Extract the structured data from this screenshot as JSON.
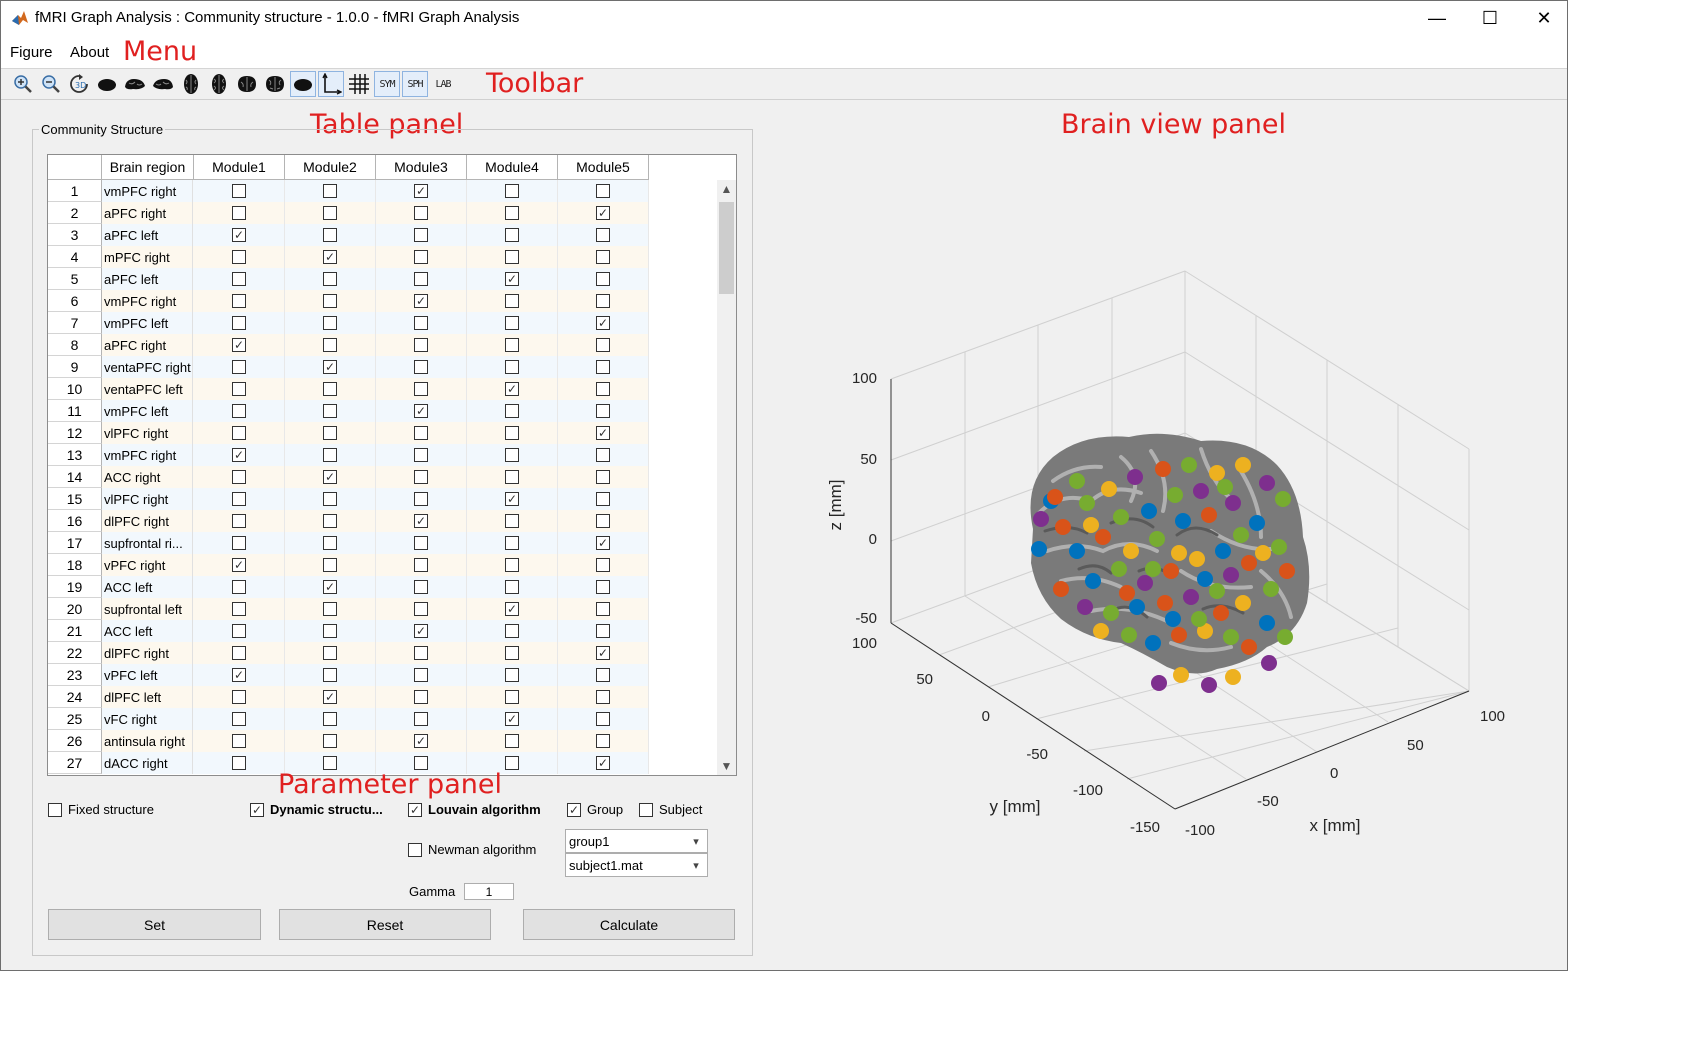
{
  "window": {
    "title": "fMRI Graph Analysis : Community structure - 1.0.0 - fMRI Graph Analysis",
    "minimize": "—",
    "maximize": "☐",
    "close": "✕"
  },
  "menu": {
    "items": [
      "Figure",
      "About"
    ]
  },
  "annotations": {
    "menu": "Menu",
    "toolbar": "Toolbar",
    "table_panel": "Table panel",
    "brain_view_panel": "Brain view panel",
    "parameter_panel": "Parameter panel"
  },
  "toolbar": {
    "buttons": [
      {
        "name": "zoom-in-icon"
      },
      {
        "name": "zoom-out-icon"
      },
      {
        "name": "rotate-3d-icon"
      },
      {
        "name": "brain-view-1-icon"
      },
      {
        "name": "brain-view-2-icon"
      },
      {
        "name": "brain-view-3-icon"
      },
      {
        "name": "brain-view-4-icon"
      },
      {
        "name": "brain-view-5-icon"
      },
      {
        "name": "brain-view-6-icon"
      },
      {
        "name": "brain-view-7-icon"
      },
      {
        "name": "brain-toggle-icon",
        "active": true
      },
      {
        "name": "axis-toggle-icon",
        "active": true
      },
      {
        "name": "grid-toggle-icon"
      },
      {
        "name": "sym-toggle",
        "text": "SYM",
        "active": true
      },
      {
        "name": "sph-toggle",
        "text": "SPH",
        "active": true
      },
      {
        "name": "lab-toggle",
        "text": "LAB"
      }
    ]
  },
  "panel": {
    "title": "Community Structure"
  },
  "table": {
    "columns": [
      "Brain region",
      "Module1",
      "Module2",
      "Module3",
      "Module4",
      "Module5"
    ],
    "rows": [
      {
        "n": "1",
        "region": "vmPFC right",
        "module": 3
      },
      {
        "n": "2",
        "region": "aPFC right",
        "module": 5
      },
      {
        "n": "3",
        "region": "aPFC left",
        "module": 1
      },
      {
        "n": "4",
        "region": "mPFC right",
        "module": 2
      },
      {
        "n": "5",
        "region": "aPFC left",
        "module": 4
      },
      {
        "n": "6",
        "region": "vmPFC right",
        "module": 3
      },
      {
        "n": "7",
        "region": "vmPFC left",
        "module": 5
      },
      {
        "n": "8",
        "region": "aPFC right",
        "module": 1
      },
      {
        "n": "9",
        "region": "ventaPFC right",
        "module": 2
      },
      {
        "n": "10",
        "region": "ventaPFC left",
        "module": 4
      },
      {
        "n": "11",
        "region": "vmPFC left",
        "module": 3
      },
      {
        "n": "12",
        "region": "vlPFC right",
        "module": 5
      },
      {
        "n": "13",
        "region": "vmPFC right",
        "module": 1
      },
      {
        "n": "14",
        "region": "ACC right",
        "module": 2
      },
      {
        "n": "15",
        "region": "vlPFC right",
        "module": 4
      },
      {
        "n": "16",
        "region": "dlPFC right",
        "module": 3
      },
      {
        "n": "17",
        "region": "supfrontal ri...",
        "module": 5
      },
      {
        "n": "18",
        "region": "vPFC right",
        "module": 1
      },
      {
        "n": "19",
        "region": "ACC left",
        "module": 2
      },
      {
        "n": "20",
        "region": "supfrontal left",
        "module": 4
      },
      {
        "n": "21",
        "region": "ACC left",
        "module": 3
      },
      {
        "n": "22",
        "region": "dlPFC right",
        "module": 5
      },
      {
        "n": "23",
        "region": "vPFC left",
        "module": 1
      },
      {
        "n": "24",
        "region": "dlPFC left",
        "module": 2
      },
      {
        "n": "25",
        "region": "vFC right",
        "module": 4
      },
      {
        "n": "26",
        "region": "antinsula right",
        "module": 3
      },
      {
        "n": "27",
        "region": "dACC right",
        "module": 5
      }
    ]
  },
  "params": {
    "fixed_structure": {
      "label": "Fixed structure",
      "checked": false
    },
    "dynamic_structure": {
      "label": "Dynamic structu...",
      "checked": true
    },
    "louvain": {
      "label": "Louvain algorithm",
      "checked": true
    },
    "newman": {
      "label": "Newman algorithm",
      "checked": false
    },
    "group": {
      "label": "Group",
      "checked": true
    },
    "subject": {
      "label": "Subject",
      "checked": false
    },
    "group_select": "group1",
    "subject_select": "subject1.mat",
    "gamma_label": "Gamma",
    "gamma_value": "1",
    "set_button": "Set",
    "reset_button": "Reset",
    "calculate_button": "Calculate"
  },
  "brain_view": {
    "z_axis_label": "z [mm]",
    "y_axis_label": "y [mm]",
    "x_axis_label": "x [mm]",
    "z_ticks": [
      "100",
      "50",
      "0",
      "-50"
    ],
    "y_ticks": [
      "100",
      "50",
      "0",
      "-50",
      "-100",
      "-150"
    ],
    "x_ticks": [
      "-100",
      "-50",
      "0",
      "50",
      "100"
    ],
    "module_colors": [
      "#7e2f8e",
      "#0072bd",
      "#d95319",
      "#77ac30",
      "#edb120"
    ]
  }
}
